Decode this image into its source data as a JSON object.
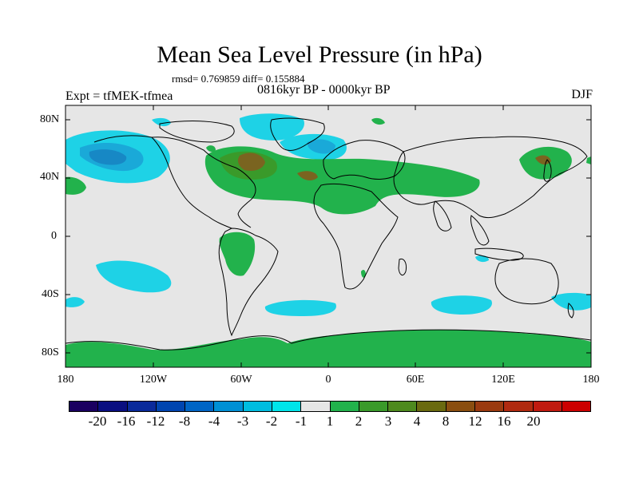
{
  "title": "Mean Sea Level Pressure (in hPa)",
  "stats": "rmsd= 0.769859 diff= 0.155884",
  "period": "0816kyr BP - 0000kyr BP",
  "experiment": "Expt = tfMEK-tfmea",
  "season": "DJF",
  "lat_ticks": [
    "80N",
    "40N",
    "0",
    "40S",
    "80S"
  ],
  "lon_ticks": [
    "180",
    "120W",
    "60W",
    "0",
    "60E",
    "120E",
    "180"
  ],
  "colorbar": {
    "colors": [
      "#1a0060",
      "#0a0f80",
      "#0a2a9a",
      "#0045b0",
      "#0065c5",
      "#0090d5",
      "#00bde0",
      "#00e5ea",
      "#e6e6e6",
      "#22b24c",
      "#3a9a2a",
      "#4e8a1e",
      "#6a6a10",
      "#8a4e10",
      "#9a3a10",
      "#b02a10",
      "#c01a10",
      "#cc0000"
    ],
    "labels": [
      "-20",
      "-16",
      "-12",
      "-8",
      "-4",
      "-3",
      "-2",
      "-1",
      "1",
      "2",
      "3",
      "4",
      "8",
      "12",
      "16",
      "20"
    ]
  },
  "fill_colors": {
    "background": "#e6e6e6",
    "pos_weak": "#22b24c",
    "pos_mid": "#3a9a2a",
    "pos_strong": "#7a6420",
    "neg_weak": "#1ed2e6",
    "neg_mid": "#1aa9d8",
    "neg_strong": "#1788c5"
  }
}
